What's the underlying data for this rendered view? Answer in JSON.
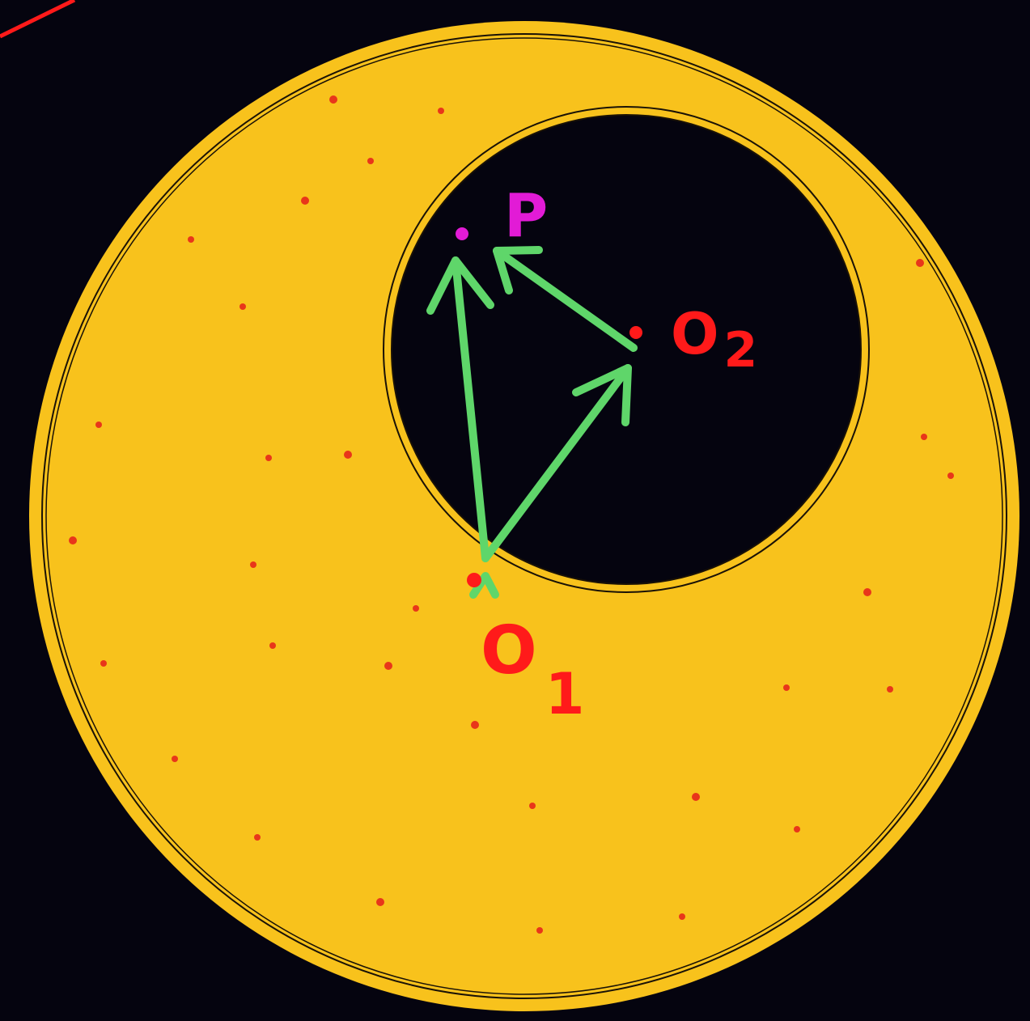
{
  "labels": {
    "point": "P",
    "center_outer": "O",
    "center_outer_sub": "1",
    "center_inner": "O",
    "center_inner_sub": "2"
  },
  "colors": {
    "background": "#05040f",
    "sphere_fill": "#f8c21c",
    "outline": "#1a1206",
    "vector": "#5fd66a",
    "point": "#e21bd6",
    "centers": "#ff1a1a",
    "specks": "#e8361a",
    "corner_line": "#ff1a1a"
  },
  "icons": {
    "vectors": "arrow-icon"
  }
}
